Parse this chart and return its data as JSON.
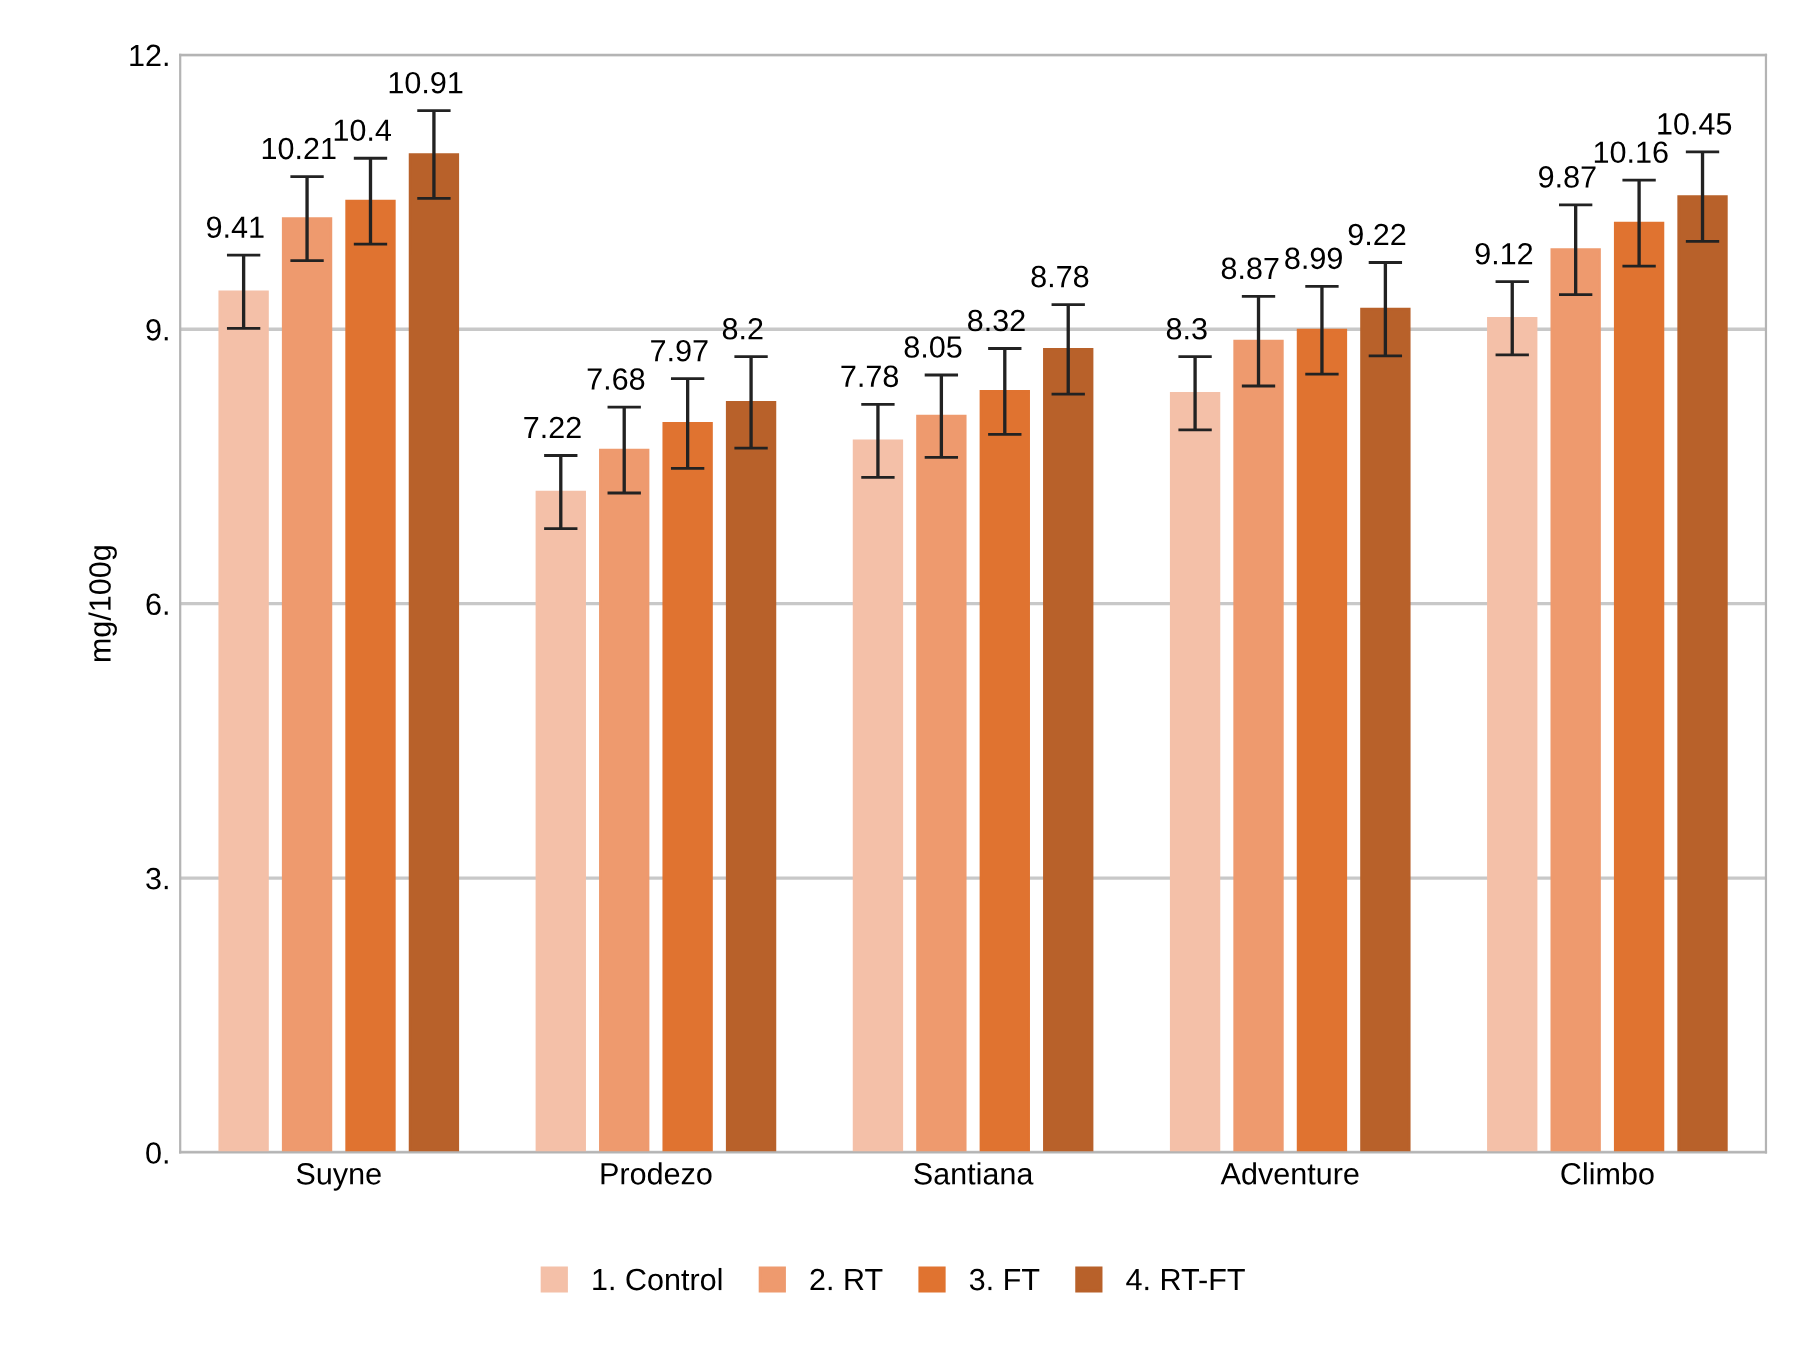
{
  "chart_data": {
    "type": "bar",
    "ylabel": "mg/100g",
    "categories": [
      "Suyne",
      "Prodezo",
      "Santiana",
      "Adventure",
      "Climbo"
    ],
    "series": [
      {
        "name": "1. Control",
        "color": "#f4c0a8",
        "values": [
          9.41,
          7.22,
          7.78,
          8.3,
          9.12
        ],
        "errors": [
          0.4,
          0.4,
          0.4,
          0.4,
          0.4
        ]
      },
      {
        "name": "2. RT",
        "color": "#ee9a6e",
        "values": [
          10.21,
          7.68,
          8.05,
          8.87,
          9.87
        ],
        "errors": [
          0.46,
          0.47,
          0.45,
          0.49,
          0.49
        ]
      },
      {
        "name": "3. FT",
        "color": "#e07330",
        "values": [
          10.4,
          7.97,
          8.32,
          8.99,
          10.16
        ],
        "errors": [
          0.47,
          0.49,
          0.47,
          0.48,
          0.47
        ]
      },
      {
        "name": "4. RT-FT",
        "color": "#b8612a",
        "values": [
          10.91,
          8.2,
          8.78,
          9.22,
          10.45
        ],
        "errors": [
          0.48,
          0.5,
          0.49,
          0.51,
          0.49
        ]
      }
    ],
    "ylim": [
      0,
      12
    ],
    "yticks": [
      {
        "value": 0,
        "label": "0."
      },
      {
        "value": 3,
        "label": "3."
      },
      {
        "value": 6,
        "label": "6."
      },
      {
        "value": 9,
        "label": "9."
      },
      {
        "value": 12,
        "label": "12."
      }
    ],
    "grid": "y",
    "legend": "bottom",
    "data_labels": true
  }
}
